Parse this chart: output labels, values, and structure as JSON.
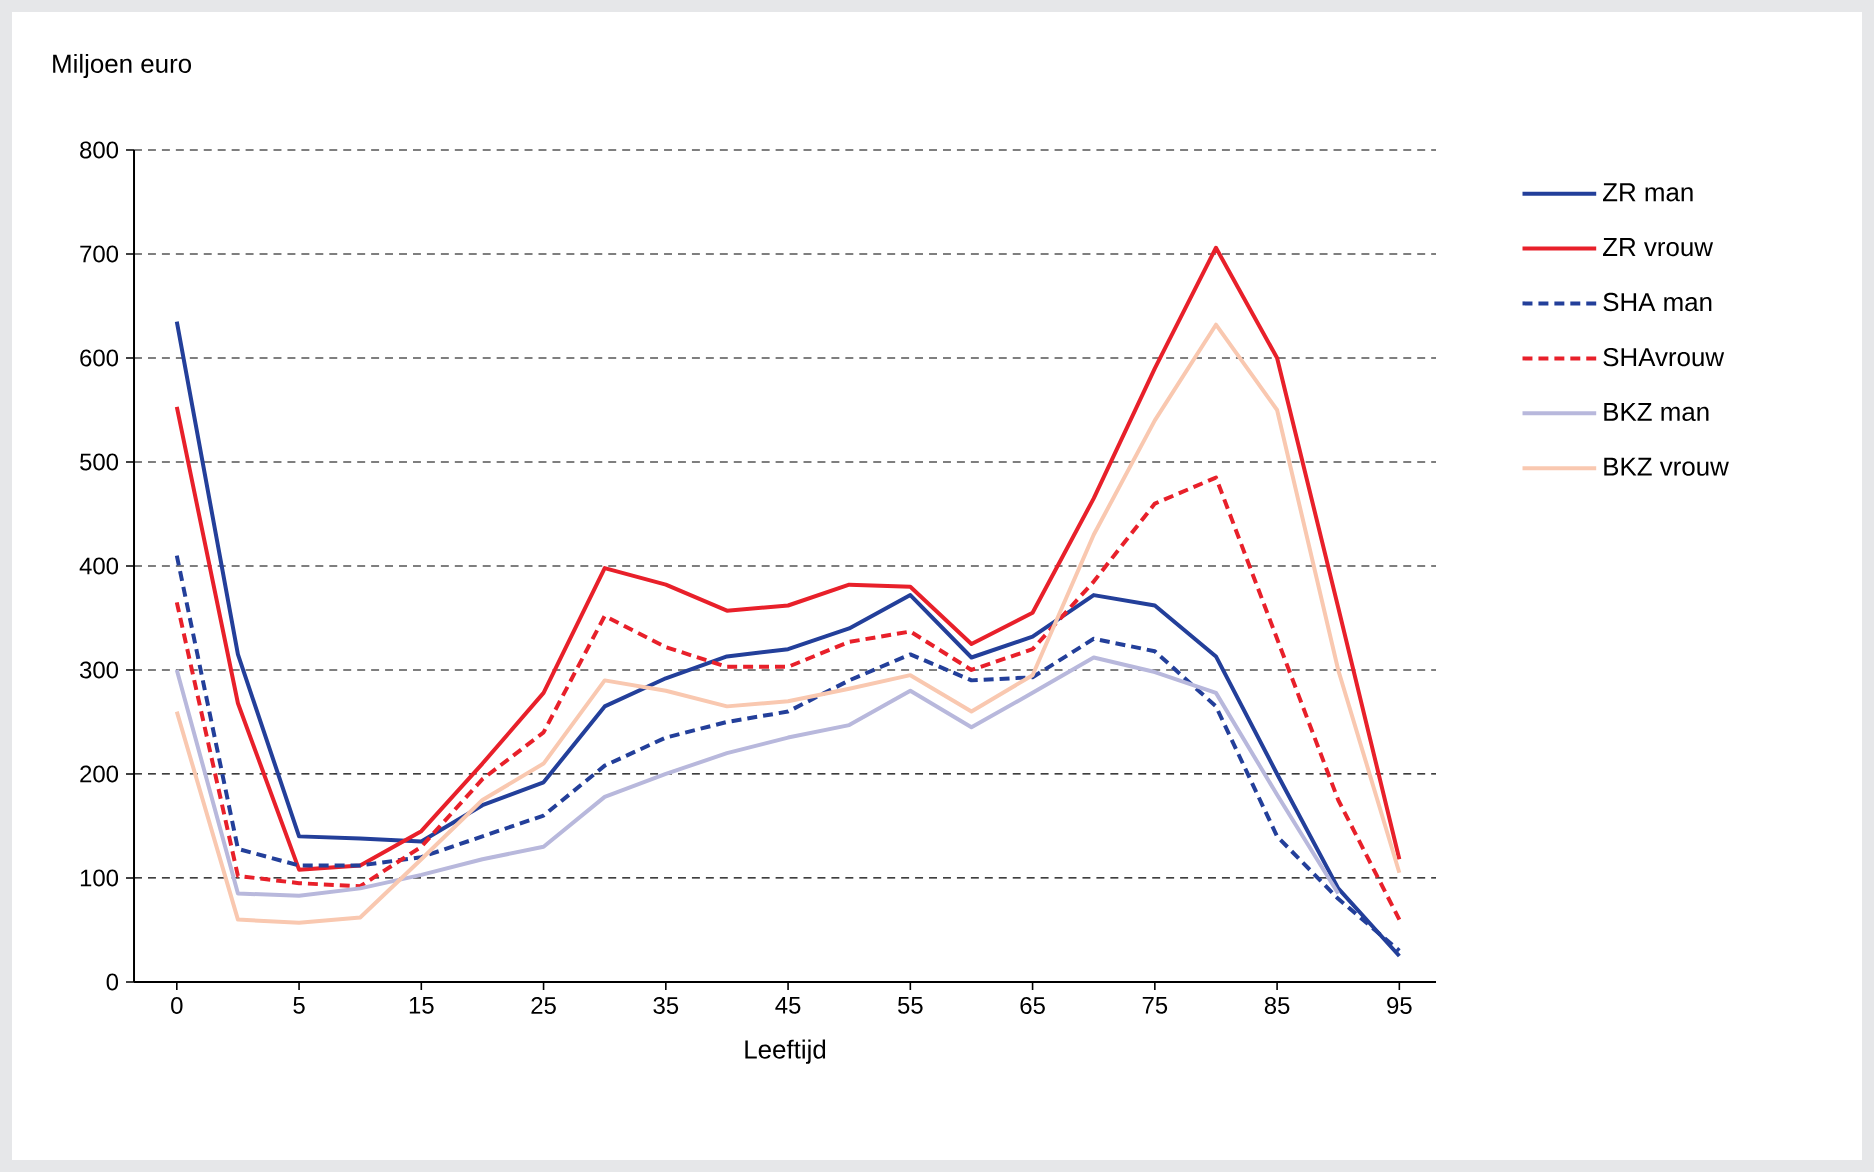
{
  "chart_data": {
    "type": "line",
    "xlabel": "Leeftijd",
    "ylabel": "Miljoen euro",
    "categories": [
      "0",
      null,
      "5",
      null,
      "15",
      null,
      "25",
      null,
      "35",
      null,
      "45",
      null,
      "55",
      null,
      "65",
      null,
      "75",
      null,
      "85",
      null,
      "95"
    ],
    "ylim": [
      0,
      800
    ],
    "yticks": [
      0,
      100,
      200,
      300,
      400,
      500,
      600,
      700,
      800
    ],
    "grid": "y",
    "legend": "right",
    "series": [
      {
        "name": "ZR man",
        "color": "#233f9a",
        "line_style": "solid",
        "values": [
          635,
          315,
          140,
          138,
          135,
          170,
          192,
          265,
          292,
          313,
          320,
          340,
          372,
          312,
          332,
          372,
          362,
          313,
          200,
          90,
          25
        ]
      },
      {
        "name": "ZR vrouw",
        "color": "#e8202a",
        "line_style": "solid",
        "values": [
          553,
          268,
          108,
          112,
          145,
          210,
          278,
          398,
          382,
          357,
          362,
          382,
          380,
          325,
          355,
          465,
          590,
          706,
          600,
          360,
          118
        ]
      },
      {
        "name": "SHA man",
        "color": "#233f9a",
        "line_style": "dashed",
        "values": [
          410,
          128,
          112,
          112,
          120,
          140,
          160,
          208,
          235,
          250,
          260,
          290,
          315,
          290,
          293,
          330,
          318,
          265,
          140,
          80,
          30
        ]
      },
      {
        "name": "SHAvrouw",
        "color": "#e8202a",
        "line_style": "dashed",
        "values": [
          365,
          102,
          95,
          92,
          130,
          195,
          240,
          352,
          322,
          303,
          303,
          327,
          337,
          300,
          320,
          385,
          460,
          485,
          330,
          175,
          60
        ]
      },
      {
        "name": "BKZ man",
        "color": "#b8b8dc",
        "line_style": "solid",
        "values": [
          300,
          85,
          83,
          90,
          103,
          118,
          130,
          178,
          200,
          220,
          235,
          247,
          280,
          245,
          278,
          312,
          298,
          278,
          180,
          85,
          null
        ]
      },
      {
        "name": "BKZ vrouw",
        "color": "#f9c8b0",
        "line_style": "solid",
        "values": [
          260,
          60,
          57,
          62,
          118,
          175,
          210,
          290,
          280,
          265,
          270,
          282,
          295,
          260,
          295,
          430,
          540,
          632,
          550,
          300,
          105
        ]
      }
    ]
  }
}
